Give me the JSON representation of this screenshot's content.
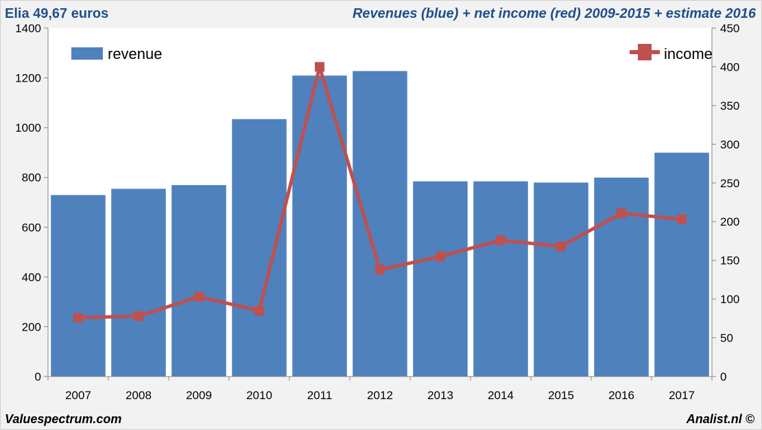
{
  "header": {
    "left": "Elia 49,67 euros",
    "right": "Revenues (blue) + net income (red) 2009-2015 + estimate 2016"
  },
  "footer": {
    "left": "Valuespectrum.com",
    "right": "Analist.nl ©"
  },
  "colors": {
    "bar": "#4f81bd",
    "line": "#c0504d",
    "header_text": "#1f4e8c"
  },
  "chart_data": {
    "type": "bar+line",
    "categories": [
      "2007",
      "2008",
      "2009",
      "2010",
      "2011",
      "2012",
      "2013",
      "2014",
      "2015",
      "2016",
      "2017"
    ],
    "series": [
      {
        "name": "revenue",
        "type": "bar",
        "axis": "left",
        "values": [
          730,
          755,
          770,
          1035,
          1210,
          1228,
          785,
          785,
          780,
          800,
          900
        ]
      },
      {
        "name": "income",
        "type": "line",
        "axis": "right",
        "values": [
          76,
          78,
          103,
          85,
          400,
          138,
          155,
          176,
          168,
          211,
          203
        ]
      }
    ],
    "y_left": {
      "min": 0,
      "max": 1400,
      "ticks": [
        0,
        200,
        400,
        600,
        800,
        1000,
        1200,
        1400
      ]
    },
    "y_right": {
      "min": 0,
      "max": 450,
      "ticks": [
        0,
        50,
        100,
        150,
        200,
        250,
        300,
        350,
        400,
        450
      ]
    },
    "legend": {
      "revenue_position": "top-left",
      "income_position": "top-right"
    },
    "grid": false
  }
}
